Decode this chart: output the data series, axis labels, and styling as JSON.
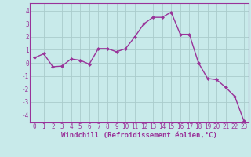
{
  "x": [
    0,
    1,
    2,
    3,
    4,
    5,
    6,
    7,
    8,
    9,
    10,
    11,
    12,
    13,
    14,
    15,
    16,
    17,
    18,
    19,
    20,
    21,
    22,
    23
  ],
  "y": [
    0.4,
    0.7,
    -0.3,
    -0.25,
    0.3,
    0.2,
    -0.1,
    1.1,
    1.1,
    0.85,
    1.1,
    2.0,
    3.0,
    3.5,
    3.5,
    3.9,
    2.2,
    2.2,
    0.0,
    -1.2,
    -1.3,
    -1.9,
    -2.6,
    -4.5
  ],
  "line_color": "#993399",
  "marker": "D",
  "marker_size": 2.0,
  "bg_color": "#c8eaea",
  "grid_color": "#aacccc",
  "xlabel": "Windchill (Refroidissement éolien,°C)",
  "ylim": [
    -4.6,
    4.6
  ],
  "xlim": [
    -0.5,
    23.5
  ],
  "yticks": [
    -4,
    -3,
    -2,
    -1,
    0,
    1,
    2,
    3,
    4
  ],
  "xticks": [
    0,
    1,
    2,
    3,
    4,
    5,
    6,
    7,
    8,
    9,
    10,
    11,
    12,
    13,
    14,
    15,
    16,
    17,
    18,
    19,
    20,
    21,
    22,
    23
  ],
  "xlabel_fontsize": 6.5,
  "tick_fontsize": 5.5,
  "line_width": 1.0,
  "spine_color": "#993399"
}
